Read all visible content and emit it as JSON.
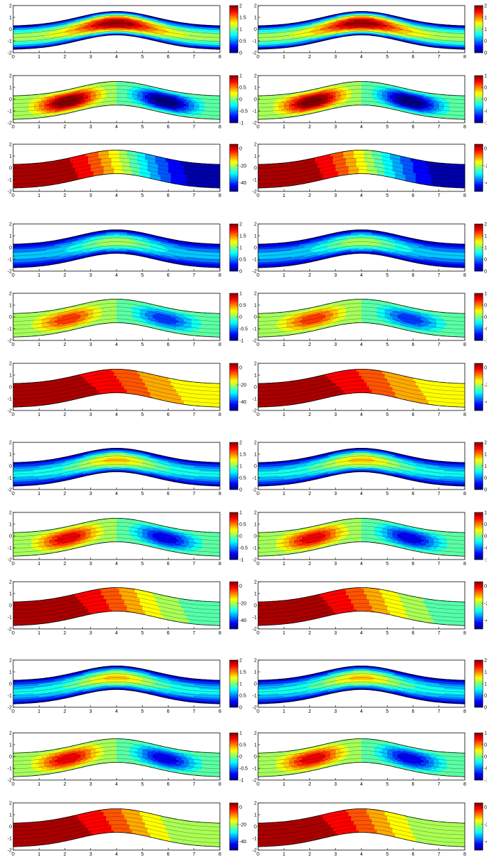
{
  "figure": {
    "grid_rows": 12,
    "grid_cols": 2,
    "panel_groups": 4,
    "colormap": "jet",
    "colormap_stops": [
      "#00008f",
      "#0000ff",
      "#00ffff",
      "#ffff00",
      "#ff0000",
      "#800000"
    ],
    "contour_line_color": "#000000"
  },
  "chart_data": [
    {
      "type": "contour",
      "field": "A",
      "ylim": [
        -2,
        2
      ],
      "xlim": [
        0,
        8
      ],
      "xticks": [
        "0",
        "1",
        "2",
        "3",
        "4",
        "5",
        "6",
        "7",
        "8"
      ],
      "yticks": [
        "2",
        "1",
        "0",
        "-1",
        "-2"
      ],
      "colorbar_ticks": [
        "2",
        "1.5",
        "1",
        "0.5",
        "0"
      ],
      "colorbar_range": [
        0,
        2
      ],
      "channel_x": [
        0,
        4,
        8
      ],
      "wall_top_y": [
        0.3,
        1.5,
        0.3
      ],
      "wall_bottom_y": [
        -1.7,
        -0.5,
        -1.7
      ],
      "peak_level": 2.0
    },
    {
      "type": "contour",
      "field": "B",
      "ylim": [
        -2,
        2
      ],
      "xlim": [
        0,
        8
      ],
      "xticks": [
        "0",
        "1",
        "2",
        "3",
        "4",
        "5",
        "6",
        "7",
        "8"
      ],
      "yticks": [
        "2",
        "1",
        "0",
        "-1",
        "-2"
      ],
      "colorbar_ticks": [
        "1",
        "0.5",
        "0",
        "-0.5",
        "-1"
      ],
      "colorbar_range": [
        -1,
        1
      ],
      "vortex_left_x": 2.3,
      "vortex_right_x": 5.8,
      "peak_level": 1.0
    },
    {
      "type": "contour",
      "field": "C",
      "ylim": [
        -2,
        2
      ],
      "xlim": [
        0,
        8
      ],
      "xticks": [
        "0",
        "1",
        "2",
        "3",
        "4",
        "5",
        "6",
        "7",
        "8"
      ],
      "yticks": [
        "2",
        "1",
        "0",
        "-1",
        "-2"
      ],
      "colorbar_ticks": [
        "0",
        "-20",
        "-40"
      ],
      "colorbar_range": [
        -50,
        5
      ],
      "left_value": 3,
      "right_value": -48
    },
    {
      "type": "contour",
      "field": "A",
      "group": 2,
      "colorbar_ticks": [
        "2",
        "1.5",
        "1",
        "0.5",
        "0"
      ],
      "colorbar_range": [
        0,
        2
      ],
      "peak_level": 1.1
    },
    {
      "type": "contour",
      "field": "B",
      "group": 2,
      "colorbar_ticks": [
        "1",
        "0.5",
        "0",
        "-0.5",
        "-1"
      ],
      "colorbar_range": [
        -1,
        1
      ],
      "peak_level": 0.6
    },
    {
      "type": "contour",
      "field": "C",
      "group": 2,
      "colorbar_ticks": [
        "0",
        "-20",
        "-40"
      ],
      "colorbar_range": [
        -50,
        5
      ],
      "left_value": 3,
      "right_value": -15
    },
    {
      "type": "contour",
      "field": "A",
      "group": 3,
      "colorbar_ticks": [
        "2",
        "1.5",
        "1",
        "0.5",
        "0"
      ],
      "colorbar_range": [
        0,
        2
      ],
      "peak_level": 1.35
    },
    {
      "type": "contour",
      "field": "B",
      "group": 3,
      "colorbar_ticks": [
        "1",
        "0.5",
        "0",
        "-0.5",
        "-1"
      ],
      "colorbar_range": [
        -1,
        1
      ],
      "peak_level": 0.75
    },
    {
      "type": "contour",
      "field": "C",
      "group": 3,
      "colorbar_ticks": [
        "0",
        "-20",
        "-40"
      ],
      "colorbar_range": [
        -50,
        5
      ],
      "left_value": 3,
      "right_value": -24
    },
    {
      "type": "contour",
      "field": "A",
      "group": 4,
      "colorbar_ticks": [
        "2",
        "1.5",
        "1",
        "0.5",
        "0"
      ],
      "colorbar_range": [
        0,
        2
      ],
      "peak_level": 1.35
    },
    {
      "type": "contour",
      "field": "B",
      "group": 4,
      "colorbar_ticks": [
        "1",
        "0.5",
        "0",
        "-0.5",
        "-1"
      ],
      "colorbar_range": [
        -1,
        1
      ],
      "peak_level": 0.75
    },
    {
      "type": "contour",
      "field": "C",
      "group": 4,
      "colorbar_ticks": [
        "0",
        "-20",
        "-40"
      ],
      "colorbar_range": [
        -50,
        5
      ],
      "left_value": 3,
      "right_value": -22
    }
  ]
}
